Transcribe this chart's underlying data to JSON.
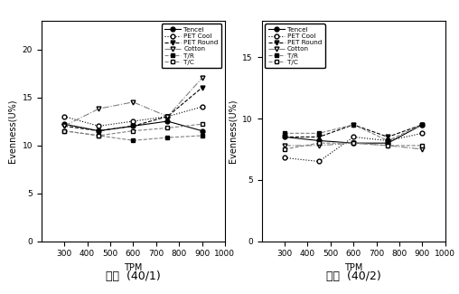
{
  "xvalues": [
    300,
    450,
    600,
    750,
    900
  ],
  "left_subtitle": "단사  (40/1)",
  "right_subtitle": "합사  (40/2)",
  "xlabel": "TPM",
  "ylabel": "Evenness(U%)",
  "xlim": [
    200,
    1000
  ],
  "left_ylim": [
    0,
    23
  ],
  "right_ylim": [
    0,
    18
  ],
  "left_yticks": [
    0,
    5,
    10,
    15,
    20
  ],
  "right_yticks": [
    0,
    5,
    10,
    15
  ],
  "xticks": [
    300,
    400,
    500,
    600,
    700,
    800,
    900,
    1000
  ],
  "series": [
    {
      "label": "Tencel",
      "marker": "o",
      "markerfacecolor": "black",
      "linestyle": "-",
      "color": "black",
      "left_data": [
        12.2,
        11.5,
        12.0,
        12.5,
        11.5
      ],
      "right_data": [
        8.5,
        8.2,
        8.0,
        8.0,
        9.5
      ]
    },
    {
      "label": "PET Cool",
      "marker": "o",
      "markerfacecolor": "white",
      "linestyle": ":",
      "color": "black",
      "left_data": [
        13.0,
        12.0,
        12.5,
        13.0,
        14.0
      ],
      "right_data": [
        6.8,
        6.5,
        8.5,
        8.2,
        8.8
      ]
    },
    {
      "label": "PET Round",
      "marker": "v",
      "markerfacecolor": "black",
      "linestyle": "--",
      "color": "black",
      "left_data": [
        12.0,
        11.5,
        12.0,
        13.0,
        16.0
      ],
      "right_data": [
        8.5,
        8.5,
        9.5,
        8.5,
        9.5
      ]
    },
    {
      "label": "Cotton",
      "marker": "v",
      "markerfacecolor": "white",
      "linestyle": "-.",
      "color": "gray",
      "left_data": [
        12.0,
        13.8,
        14.5,
        13.0,
        17.0
      ],
      "right_data": [
        7.8,
        7.8,
        8.0,
        7.8,
        7.5
      ]
    },
    {
      "label": "T/R",
      "marker": "s",
      "markerfacecolor": "black",
      "linestyle": "--",
      "color": "gray",
      "left_data": [
        11.5,
        11.0,
        10.5,
        10.8,
        11.0
      ],
      "right_data": [
        8.8,
        8.8,
        9.5,
        8.2,
        9.5
      ]
    },
    {
      "label": "T/C",
      "marker": "s",
      "markerfacecolor": "white",
      "linestyle": "--",
      "color": "gray",
      "left_data": [
        11.5,
        11.0,
        11.5,
        11.8,
        12.2
      ],
      "right_data": [
        7.5,
        8.0,
        8.0,
        7.8,
        7.8
      ]
    }
  ]
}
